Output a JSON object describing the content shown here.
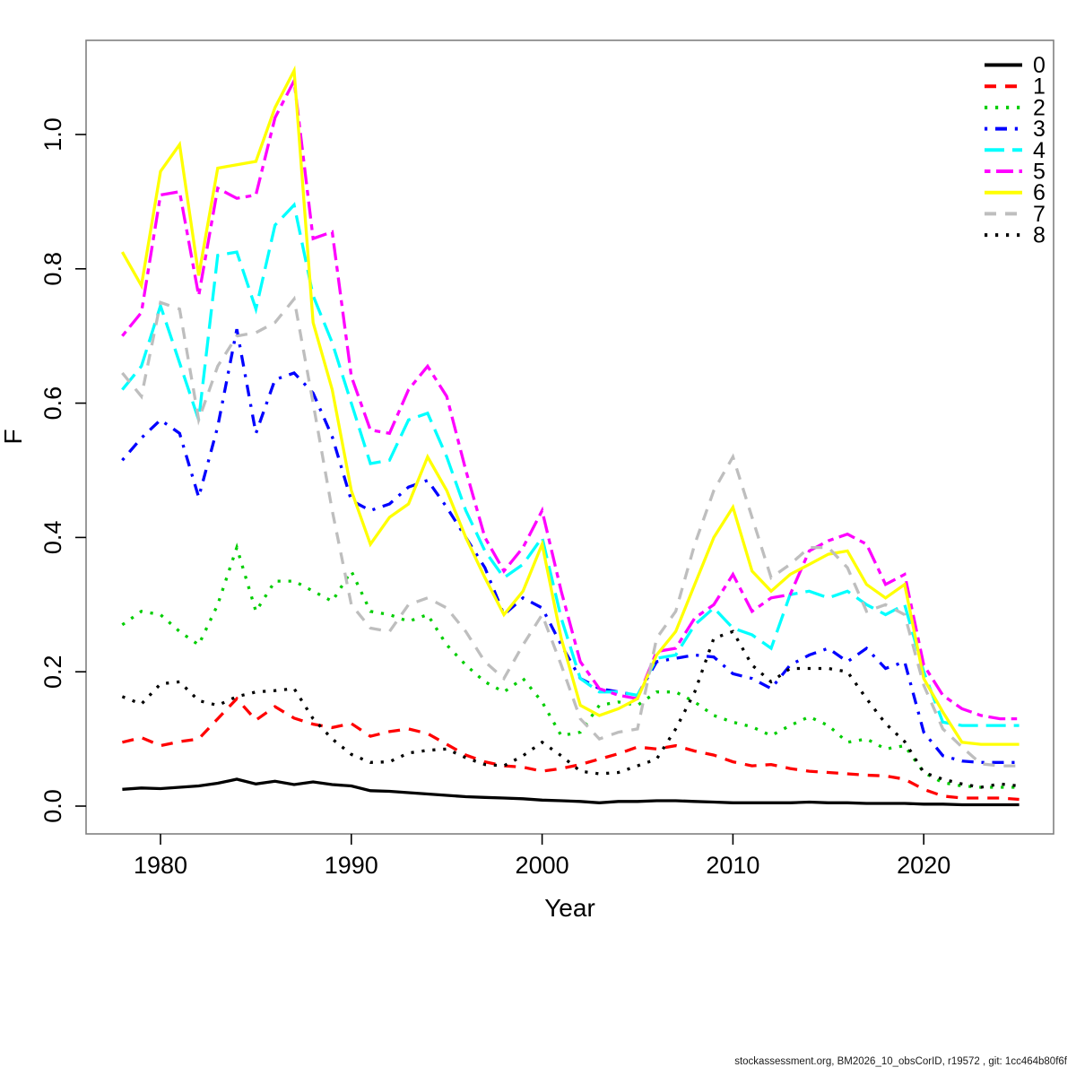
{
  "figure": {
    "footer": "stockassessment.org, BM2026_10_obsCorID, r19572 , git: 1cc464b80f6f",
    "background": "#ffffff",
    "box_color": "#808080"
  },
  "chart_data": {
    "type": "line",
    "title": "",
    "xlabel": "Year",
    "ylabel": "F",
    "x_ticks": [
      1980,
      1990,
      2000,
      2010,
      2020
    ],
    "y_ticks": [
      "0.0",
      "0.2",
      "0.4",
      "0.6",
      "0.8",
      "1.0"
    ],
    "xlim": [
      1976.1,
      2027.1
    ],
    "ylim": [
      -0.043,
      1.14
    ],
    "grid": false,
    "legend_position": "topright",
    "x": [
      1978,
      1979,
      1980,
      1981,
      1982,
      1983,
      1984,
      1985,
      1986,
      1987,
      1988,
      1989,
      1990,
      1991,
      1992,
      1993,
      1994,
      1995,
      1996,
      1997,
      1998,
      1999,
      2000,
      2001,
      2002,
      2003,
      2004,
      2005,
      2006,
      2007,
      2008,
      2009,
      2010,
      2011,
      2012,
      2013,
      2014,
      2015,
      2016,
      2017,
      2018,
      2019,
      2020,
      2021,
      2022,
      2023,
      2024,
      2025
    ],
    "series": [
      {
        "name": "0",
        "color": "#000000",
        "linetype": "solid",
        "values": [
          0.025,
          0.027,
          0.026,
          0.028,
          0.03,
          0.034,
          0.04,
          0.033,
          0.037,
          0.032,
          0.036,
          0.032,
          0.03,
          0.023,
          0.022,
          0.02,
          0.018,
          0.016,
          0.014,
          0.013,
          0.012,
          0.011,
          0.009,
          0.008,
          0.007,
          0.005,
          0.007,
          0.007,
          0.008,
          0.008,
          0.007,
          0.006,
          0.005,
          0.005,
          0.005,
          0.005,
          0.006,
          0.005,
          0.005,
          0.004,
          0.004,
          0.004,
          0.003,
          0.003,
          0.002,
          0.002,
          0.002,
          0.002
        ]
      },
      {
        "name": "1",
        "color": "#FF0000",
        "linetype": "dashed",
        "values": [
          0.095,
          0.102,
          0.09,
          0.096,
          0.1,
          0.13,
          0.16,
          0.128,
          0.148,
          0.131,
          0.122,
          0.117,
          0.123,
          0.104,
          0.111,
          0.115,
          0.108,
          0.092,
          0.076,
          0.066,
          0.06,
          0.058,
          0.052,
          0.056,
          0.062,
          0.07,
          0.078,
          0.088,
          0.085,
          0.09,
          0.082,
          0.076,
          0.066,
          0.06,
          0.062,
          0.056,
          0.052,
          0.05,
          0.048,
          0.046,
          0.045,
          0.04,
          0.025,
          0.015,
          0.012,
          0.012,
          0.012,
          0.01
        ]
      },
      {
        "name": "2",
        "color": "#00CD00",
        "linetype": "dotted",
        "values": [
          0.27,
          0.29,
          0.285,
          0.26,
          0.24,
          0.3,
          0.385,
          0.29,
          0.335,
          0.335,
          0.32,
          0.305,
          0.35,
          0.29,
          0.285,
          0.275,
          0.285,
          0.24,
          0.21,
          0.185,
          0.17,
          0.19,
          0.155,
          0.105,
          0.11,
          0.15,
          0.155,
          0.15,
          0.17,
          0.17,
          0.155,
          0.135,
          0.125,
          0.118,
          0.105,
          0.12,
          0.133,
          0.12,
          0.095,
          0.1,
          0.085,
          0.09,
          0.05,
          0.035,
          0.03,
          0.028,
          0.028,
          0.028
        ]
      },
      {
        "name": "3",
        "color": "#0000FF",
        "linetype": "dotdash",
        "values": [
          0.515,
          0.548,
          0.575,
          0.555,
          0.46,
          0.565,
          0.71,
          0.555,
          0.635,
          0.645,
          0.615,
          0.55,
          0.455,
          0.44,
          0.45,
          0.475,
          0.485,
          0.445,
          0.4,
          0.355,
          0.285,
          0.31,
          0.295,
          0.24,
          0.19,
          0.175,
          0.17,
          0.165,
          0.215,
          0.22,
          0.225,
          0.222,
          0.197,
          0.19,
          0.175,
          0.21,
          0.225,
          0.235,
          0.215,
          0.235,
          0.205,
          0.215,
          0.11,
          0.075,
          0.067,
          0.065,
          0.065,
          0.065
        ]
      },
      {
        "name": "4",
        "color": "#00FFFF",
        "linetype": "longdash",
        "values": [
          0.62,
          0.655,
          0.745,
          0.66,
          0.575,
          0.82,
          0.825,
          0.74,
          0.865,
          0.895,
          0.76,
          0.69,
          0.6,
          0.51,
          0.515,
          0.575,
          0.585,
          0.52,
          0.44,
          0.38,
          0.34,
          0.36,
          0.4,
          0.28,
          0.19,
          0.17,
          0.17,
          0.165,
          0.22,
          0.225,
          0.27,
          0.295,
          0.265,
          0.255,
          0.235,
          0.315,
          0.32,
          0.31,
          0.32,
          0.3,
          0.285,
          0.3,
          0.2,
          0.125,
          0.12,
          0.12,
          0.12,
          0.12
        ]
      },
      {
        "name": "5",
        "color": "#FF00FF",
        "linetype": "twodash",
        "values": [
          0.7,
          0.735,
          0.91,
          0.915,
          0.76,
          0.92,
          0.905,
          0.91,
          1.025,
          1.08,
          0.845,
          0.855,
          0.64,
          0.56,
          0.555,
          0.62,
          0.655,
          0.61,
          0.5,
          0.4,
          0.35,
          0.385,
          0.44,
          0.32,
          0.215,
          0.175,
          0.165,
          0.16,
          0.23,
          0.235,
          0.28,
          0.3,
          0.345,
          0.29,
          0.31,
          0.315,
          0.38,
          0.395,
          0.405,
          0.39,
          0.33,
          0.345,
          0.21,
          0.165,
          0.145,
          0.135,
          0.13,
          0.13
        ]
      },
      {
        "name": "6",
        "color": "#FFFF00",
        "linetype": "solid",
        "values": [
          0.825,
          0.775,
          0.945,
          0.985,
          0.79,
          0.95,
          0.955,
          0.96,
          1.04,
          1.095,
          0.72,
          0.62,
          0.47,
          0.39,
          0.43,
          0.45,
          0.52,
          0.47,
          0.4,
          0.34,
          0.285,
          0.32,
          0.39,
          0.25,
          0.15,
          0.135,
          0.145,
          0.16,
          0.225,
          0.26,
          0.33,
          0.4,
          0.445,
          0.35,
          0.32,
          0.345,
          0.36,
          0.375,
          0.38,
          0.33,
          0.31,
          0.33,
          0.19,
          0.14,
          0.095,
          0.092,
          0.092,
          0.092
        ]
      },
      {
        "name": "7",
        "color": "#BEBEBE",
        "linetype": "dashed",
        "values": [
          0.645,
          0.61,
          0.75,
          0.74,
          0.575,
          0.655,
          0.7,
          0.705,
          0.72,
          0.755,
          0.6,
          0.44,
          0.3,
          0.265,
          0.26,
          0.3,
          0.31,
          0.295,
          0.26,
          0.215,
          0.19,
          0.24,
          0.285,
          0.21,
          0.13,
          0.1,
          0.11,
          0.115,
          0.25,
          0.29,
          0.39,
          0.47,
          0.52,
          0.43,
          0.34,
          0.36,
          0.385,
          0.385,
          0.355,
          0.29,
          0.3,
          0.285,
          0.18,
          0.115,
          0.088,
          0.063,
          0.06,
          0.06
        ]
      },
      {
        "name": "8",
        "color": "#000000",
        "linetype": "dotted",
        "values": [
          0.163,
          0.152,
          0.182,
          0.185,
          0.157,
          0.15,
          0.163,
          0.17,
          0.172,
          0.175,
          0.13,
          0.1,
          0.077,
          0.065,
          0.066,
          0.079,
          0.083,
          0.085,
          0.072,
          0.062,
          0.06,
          0.075,
          0.095,
          0.075,
          0.052,
          0.048,
          0.05,
          0.06,
          0.07,
          0.115,
          0.17,
          0.25,
          0.26,
          0.21,
          0.185,
          0.205,
          0.205,
          0.205,
          0.2,
          0.16,
          0.123,
          0.096,
          0.05,
          0.04,
          0.033,
          0.028,
          0.033,
          0.03
        ]
      }
    ]
  }
}
